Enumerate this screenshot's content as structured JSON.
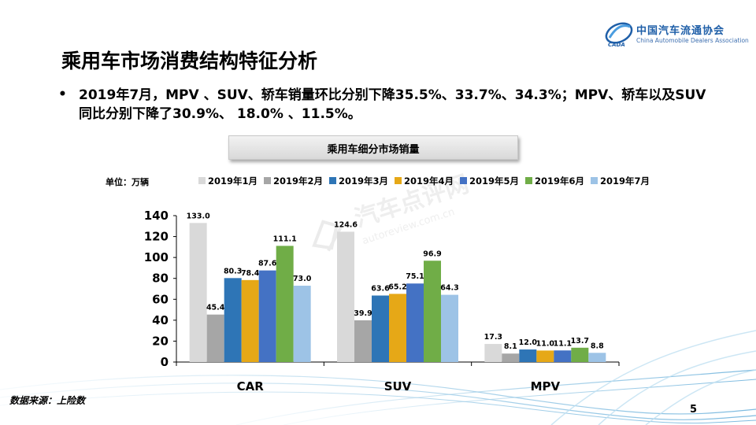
{
  "header": {
    "org_name_cn": "中国汽车流通协会",
    "org_name_en": "China Automobile Dealers Association",
    "org_badge": "CADA",
    "title": "乘用车市场消费结构特征分析"
  },
  "bullet": {
    "symbol": "•",
    "text": "2019年7月，MPV 、SUV、轿车销量环比分别下降35.5%、33.7%、34.3%；MPV、轿车以及SUV同比分别下降了30.9%、 18.0% 、11.5%。"
  },
  "chart_title": "乘用车细分市场销量",
  "unit_label": "单位：万辆",
  "watermark": {
    "text": "汽车点评网",
    "url": "autoreview.com.cn"
  },
  "footer": {
    "source": "数据来源：上险数",
    "page_number": "5"
  },
  "colors": {
    "title_shadow": "#d9d9d9",
    "axis": "#000000"
  },
  "chart_data": {
    "type": "bar",
    "categories": [
      "CAR",
      "SUV",
      "MPV"
    ],
    "series": [
      {
        "name": "2019年1月",
        "color": "#d9d9d9",
        "values": [
          133.0,
          124.6,
          17.3
        ]
      },
      {
        "name": "2019年2月",
        "color": "#a6a6a6",
        "values": [
          45.4,
          39.9,
          8.1
        ]
      },
      {
        "name": "2019年3月",
        "color": "#2e75b6",
        "values": [
          80.3,
          63.6,
          12.0
        ]
      },
      {
        "name": "2019年4月",
        "color": "#e6a817",
        "values": [
          78.4,
          65.2,
          11.0
        ]
      },
      {
        "name": "2019年5月",
        "color": "#4472c4",
        "values": [
          87.6,
          75.1,
          11.1
        ]
      },
      {
        "name": "2019年6月",
        "color": "#70ad47",
        "values": [
          111.1,
          96.9,
          13.7
        ]
      },
      {
        "name": "2019年7月",
        "color": "#9dc3e6",
        "values": [
          73.0,
          64.3,
          8.8
        ]
      }
    ],
    "yticks": [
      0,
      20,
      40,
      60,
      80,
      100,
      120,
      140
    ],
    "ylim": [
      0,
      140
    ],
    "legend_position": "top",
    "grid": false
  }
}
